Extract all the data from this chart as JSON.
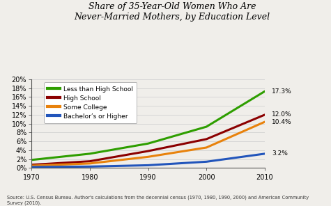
{
  "title": "Share of 35-Year-Old Women Who Are\nNever-Married Mothers, by Education Level",
  "years": [
    1970,
    1980,
    1990,
    2000,
    2010
  ],
  "series": [
    {
      "label": "Less than High School",
      "color": "#2e9e00",
      "values": [
        1.8,
        3.2,
        5.5,
        9.3,
        17.3
      ]
    },
    {
      "label": "High School",
      "color": "#8b0000",
      "values": [
        0.7,
        1.5,
        3.8,
        6.5,
        12.0
      ]
    },
    {
      "label": "Some College",
      "color": "#e8820c",
      "values": [
        0.5,
        1.0,
        2.5,
        4.6,
        10.4
      ]
    },
    {
      "label": "Bachelor’s or Higher",
      "color": "#2255bb",
      "values": [
        0.2,
        0.3,
        0.6,
        1.4,
        3.2
      ]
    }
  ],
  "end_labels": [
    "17.3%",
    "12.0%",
    "10.4%",
    "3.2%"
  ],
  "ylim": [
    0,
    20
  ],
  "yticks": [
    0,
    2,
    4,
    6,
    8,
    10,
    12,
    14,
    16,
    18,
    20
  ],
  "xticks": [
    1970,
    1980,
    1990,
    2000,
    2010
  ],
  "source_text": "Source: U.S. Census Bureau. Author's calculations from the decennial census (1970, 1980, 1990, 2000) and American Community\nSurvey (2010).",
  "background_color": "#f0eeea",
  "line_width": 2.2,
  "title_fontsize": 9,
  "tick_fontsize": 7,
  "legend_fontsize": 6.5,
  "source_fontsize": 4.8
}
